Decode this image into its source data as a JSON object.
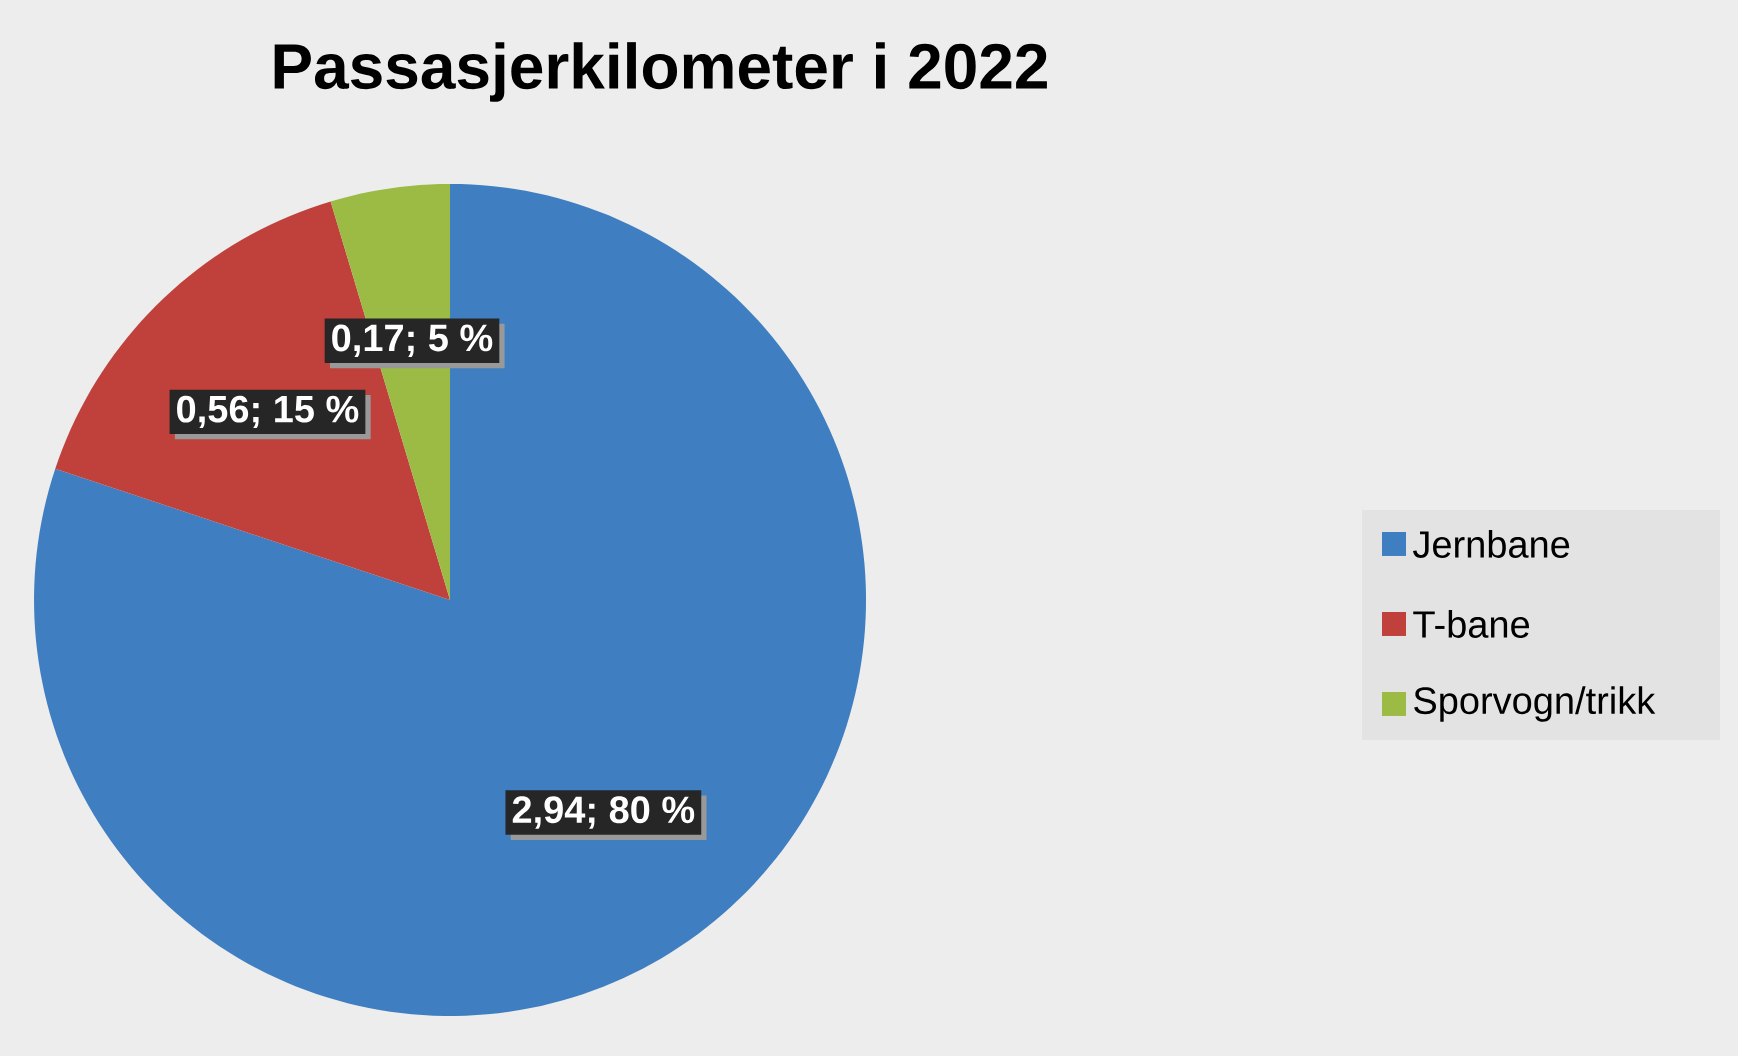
{
  "chart_data": {
    "type": "pie",
    "title": "Passasjerkilometer i 2022",
    "categories": [
      "Jernbane",
      "T-bane",
      "Sporvogn/trikk"
    ],
    "values": [
      2.94,
      0.56,
      0.17
    ],
    "colors": [
      "#3f7fc1",
      "#c0413b",
      "#9bbb45"
    ],
    "value_labels": [
      "2,94; 80 %",
      "0,56; 15 %",
      "0,17; 5 %"
    ],
    "legend": "right"
  }
}
